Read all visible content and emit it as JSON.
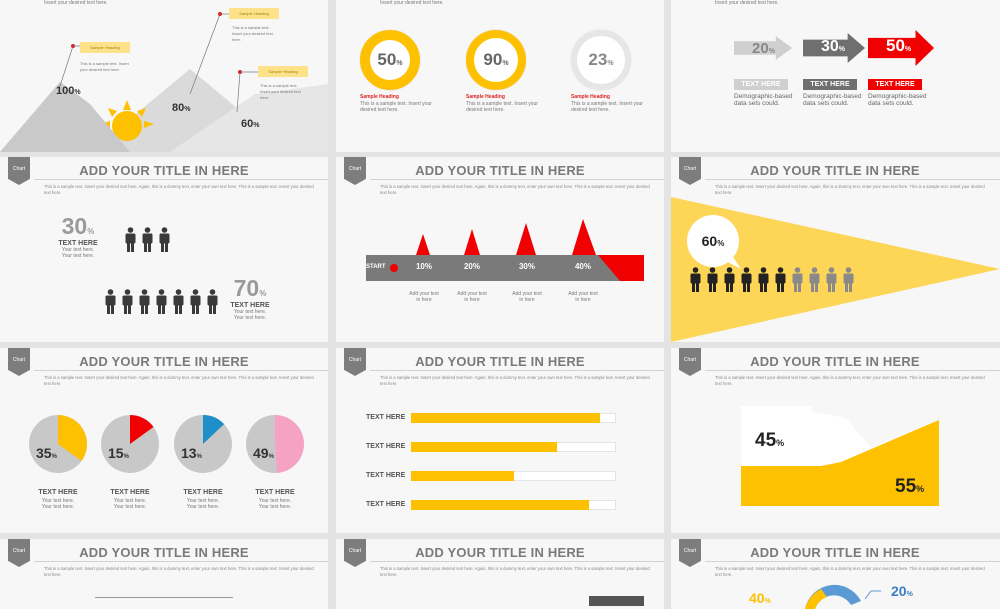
{
  "common": {
    "tag": "Chart",
    "title": "ADD YOUR TITLE IN HERE",
    "desc": "This is a sample text. Insert your desired text here. Again, this is a dummy text, enter your own text here. This is a sample text. Insert your desired text here."
  },
  "colors": {
    "yellow": "#fdc102",
    "red": "#f00000",
    "gray": "#c8c8c8",
    "dark": "#3a3a3a",
    "blue": "#1f8fc7",
    "pink": "#f6a3c3"
  },
  "s1": {
    "top_text": "Insert your desired text here.",
    "peaks": [
      {
        "value": "100",
        "heading": "Sample Heading",
        "text": "This is a sample text. Insert your desired text here."
      },
      {
        "value": "80",
        "heading": "Sample Heading",
        "text": "This is a sample text. Insert your desired text here."
      },
      {
        "value": "60",
        "heading": "Sample Heading",
        "text": "This is a sample text. Insert your desired text here."
      }
    ],
    "pct": "%"
  },
  "s2": {
    "top_text": "Insert your desired text here.",
    "rings": [
      {
        "value": "50",
        "progress": 1.0,
        "heading": "Sample Heading",
        "text": "This is a sample text. Insert your desired text here."
      },
      {
        "value": "90",
        "progress": 1.0,
        "heading": "Sample Heading",
        "text": "This is a sample text. Insert your desired text here."
      },
      {
        "value": "23",
        "progress": 1.0,
        "heading": "Sample Heading",
        "text": "This is a sample text. Insert your desired text here."
      }
    ],
    "pct": "%"
  },
  "s3": {
    "top_text": "Insert your desired text here.",
    "arrows": [
      {
        "value": "20",
        "label": "TEXT HERE",
        "text": "Demographic-based data sets could."
      },
      {
        "value": "30",
        "label": "TEXT HERE",
        "text": "Demographic-based data sets could."
      },
      {
        "value": "50",
        "label": "TEXT HERE",
        "text": "Demographic-based data sets could."
      }
    ],
    "pct": "%"
  },
  "s4": {
    "groups": [
      {
        "value": "30",
        "label": "TEXT HERE",
        "text": "Your text here.",
        "text2": "Your text here.",
        "people": 3
      },
      {
        "value": "70",
        "label": "TEXT HERE",
        "text": "Your text here.",
        "text2": "Your text here.",
        "people": 7
      }
    ],
    "pct": "%"
  },
  "s5": {
    "start": "START",
    "steps": [
      {
        "value": "10%",
        "caption": "Add your text",
        "caption2": "in here"
      },
      {
        "value": "20%",
        "caption": "Add your text",
        "caption2": "in here"
      },
      {
        "value": "30%",
        "caption": "Add your text",
        "caption2": "in here"
      },
      {
        "value": "40%",
        "caption": "Add your text",
        "caption2": "in here"
      }
    ]
  },
  "s6": {
    "value": "60",
    "pct": "%",
    "filled": 6,
    "total": 10
  },
  "s7": {
    "pies": [
      {
        "value": "35",
        "fraction": 0.35,
        "color": "#fdc102",
        "label": "TEXT HERE",
        "text": "Your text here.",
        "text2": "Your text here."
      },
      {
        "value": "15",
        "fraction": 0.15,
        "color": "#f00000",
        "label": "TEXT HERE",
        "text": "Your text here.",
        "text2": "Your text here."
      },
      {
        "value": "13",
        "fraction": 0.13,
        "color": "#1f8fc7",
        "label": "TEXT HERE",
        "text": "Your text here.",
        "text2": "Your text here."
      },
      {
        "value": "49",
        "fraction": 0.49,
        "color": "#f6a3c3",
        "label": "TEXT HERE",
        "text": "Your text here.",
        "text2": "Your text here."
      }
    ],
    "pct": "%"
  },
  "s8": {
    "bars": [
      {
        "label": "TEXT HERE",
        "fraction": 0.92
      },
      {
        "label": "TEXT HERE",
        "fraction": 0.71
      },
      {
        "label": "TEXT HERE",
        "fraction": 0.5
      },
      {
        "label": "TEXT HERE",
        "fraction": 0.87
      }
    ]
  },
  "s9": {
    "low": "45",
    "high": "55",
    "pct": "%"
  },
  "s12": {
    "a": "40",
    "b": "20",
    "pct": "%"
  }
}
